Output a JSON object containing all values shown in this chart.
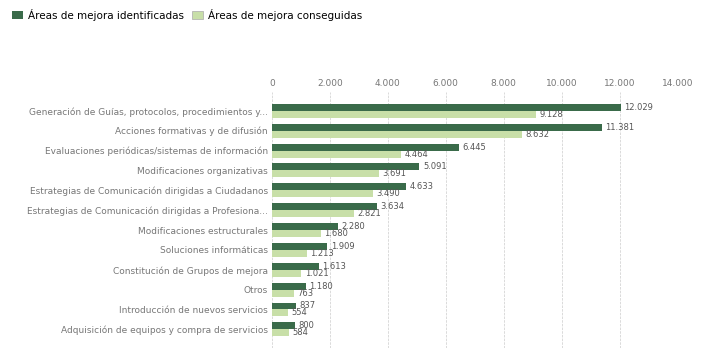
{
  "categories": [
    "Adquisición de equipos y compra de servicios",
    "Introducción de nuevos servicios",
    "Otros",
    "Constitución de Grupos de mejora",
    "Soluciones informáticas",
    "Modificaciones estructurales",
    "Estrategias de Comunicación dirigidas a Profesiona...",
    "Estrategias de Comunicación dirigidas a Ciudadanos",
    "Modificaciones organizativas",
    "Evaluaciones periódicas/sistemas de información",
    "Acciones formativas y de difusión",
    "Generación de Guías, protocolos, procedimientos y..."
  ],
  "identificadas": [
    800,
    837,
    1180,
    1613,
    1909,
    2280,
    3634,
    4633,
    5091,
    6445,
    11381,
    12029
  ],
  "conseguidas": [
    584,
    554,
    763,
    1021,
    1213,
    1680,
    2821,
    3490,
    3691,
    4464,
    8632,
    9128
  ],
  "color_identificadas": "#3a6b4a",
  "color_conseguidas": "#c8dfa8",
  "legend_identificadas": "Áreas de mejora identificadas",
  "legend_conseguidas": "Áreas de mejora conseguidas",
  "xlim": [
    0,
    14000
  ],
  "xticks": [
    0,
    2000,
    4000,
    6000,
    8000,
    10000,
    12000,
    14000
  ],
  "xtick_labels": [
    "0",
    "2.000",
    "4.000",
    "6.000",
    "8.000",
    "10.000",
    "12.000",
    "14.000"
  ],
  "bar_height": 0.35,
  "fontsize_labels": 6.5,
  "fontsize_values": 6,
  "fontsize_legend": 7.5,
  "background_color": "#ffffff"
}
